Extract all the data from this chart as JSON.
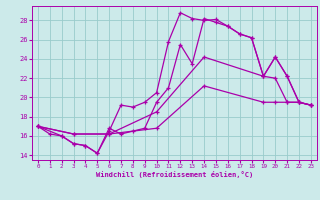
{
  "xlabel": "Windchill (Refroidissement éolien,°C)",
  "bg_color": "#cceaea",
  "grid_color": "#99cccc",
  "line_color": "#aa00aa",
  "xlim": [
    -0.5,
    23.5
  ],
  "ylim": [
    13.5,
    29.5
  ],
  "ytick_vals": [
    14,
    16,
    18,
    20,
    22,
    24,
    26,
    28
  ],
  "xtick_vals": [
    0,
    1,
    2,
    3,
    4,
    5,
    6,
    7,
    8,
    9,
    10,
    11,
    12,
    13,
    14,
    15,
    16,
    17,
    18,
    19,
    20,
    21,
    22,
    23
  ],
  "line1_x": [
    0,
    1,
    2,
    3,
    4,
    5,
    6,
    7,
    8,
    9,
    10,
    11,
    12,
    13,
    14,
    15,
    16,
    17,
    18,
    19,
    20,
    21,
    22,
    23
  ],
  "line1_y": [
    17.0,
    16.2,
    16.0,
    15.2,
    15.0,
    14.2,
    16.5,
    19.2,
    19.0,
    19.5,
    20.5,
    25.8,
    28.8,
    28.2,
    28.0,
    28.1,
    27.4,
    26.6,
    26.2,
    22.2,
    22.0,
    19.5,
    19.5,
    19.2
  ],
  "line2_x": [
    0,
    2,
    3,
    4,
    5,
    6,
    7,
    8,
    9,
    10,
    11,
    12,
    13,
    14,
    15,
    16,
    17,
    18,
    19,
    20,
    21,
    22,
    23
  ],
  "line2_y": [
    17.0,
    16.0,
    15.2,
    15.0,
    14.2,
    16.8,
    16.2,
    16.5,
    16.8,
    19.5,
    21.0,
    25.5,
    23.5,
    28.2,
    27.8,
    27.4,
    26.6,
    26.2,
    22.2,
    24.2,
    22.2,
    19.5,
    19.2
  ],
  "line3_x": [
    0,
    3,
    6,
    10,
    14,
    19,
    20,
    21,
    22,
    23
  ],
  "line3_y": [
    17.0,
    16.2,
    16.2,
    18.5,
    24.2,
    22.2,
    24.2,
    22.2,
    19.5,
    19.2
  ],
  "line4_x": [
    0,
    3,
    6,
    10,
    14,
    19,
    20,
    21,
    22,
    23
  ],
  "line4_y": [
    17.0,
    16.2,
    16.2,
    16.8,
    21.2,
    19.5,
    19.5,
    19.5,
    19.5,
    19.2
  ]
}
